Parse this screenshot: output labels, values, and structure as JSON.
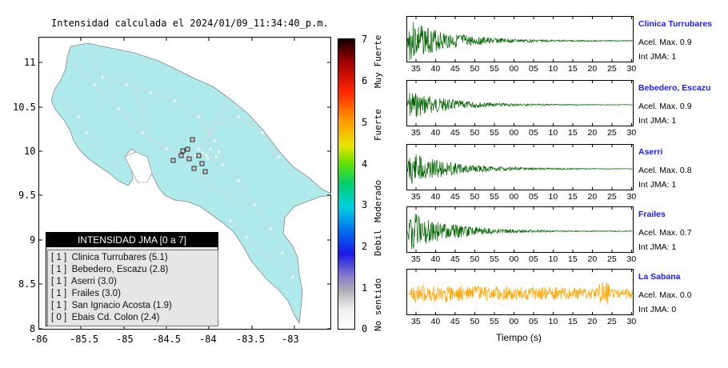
{
  "map": {
    "title": "Intensidad calculada el 2024/01/09_11:34:40_p.m.",
    "x_ticks": [
      "-86",
      "-85.5",
      "-85",
      "-84.5",
      "-84",
      "-83.5",
      "-83"
    ],
    "y_ticks": [
      "11",
      "10.5",
      "10",
      "9.5",
      "9",
      "8.5",
      "8"
    ],
    "land_color": "#aeeaec",
    "sea_color": "#ffffff"
  },
  "colorbar": {
    "ticks": [
      "7",
      "6",
      "5",
      "4",
      "3",
      "2",
      "1",
      "0"
    ],
    "categories": [
      "Muy Fuerte",
      "Fuerte",
      "Moderado",
      "Debil",
      "No sentido"
    ]
  },
  "legend": {
    "title": "INTENSIDAD JMA [0 a 7]",
    "rows": [
      "[ 1 ]  Clinica Turrubares (5.1)",
      "[ 1 ]  Bebedero, Escazu (2.8)",
      "[ 1 ]  Aserri (3.0)",
      "[ 1 ]  Frailes (3.0)",
      "[ 1 ]  San Ignacio Acosta (1.9)",
      "[ 0 ]  Ebais Cd. Colon (2.4)"
    ]
  },
  "waveforms": {
    "x_ticks": [
      "35",
      "40",
      "45",
      "50",
      "55",
      "00",
      "05",
      "10",
      "15",
      "20",
      "25",
      "30"
    ],
    "xlabel": "Tiempo (s)",
    "stations": [
      {
        "name": "Clinica Turrubares",
        "acel": "Acel. Max. 0.9",
        "int": "Int JMA: 1",
        "color": "#006400",
        "seed": 3,
        "amp": 1.0
      },
      {
        "name": "Bebedero, Escazu",
        "acel": "Acel. Max. 0.9",
        "int": "Int JMA: 1",
        "color": "#006400",
        "seed": 7,
        "amp": 0.7
      },
      {
        "name": "Aserri",
        "acel": "Acel. Max. 0.8",
        "int": "Int JMA: 1",
        "color": "#006400",
        "seed": 11,
        "amp": 0.85
      },
      {
        "name": "Frailes",
        "acel": "Acel. Max. 0.7",
        "int": "Int JMA: 1",
        "color": "#006400",
        "seed": 19,
        "amp": 0.95
      },
      {
        "name": "La Sabana",
        "acel": "Acel. Max. 0.0",
        "int": "Int JMA: 0",
        "color": "#ffa500",
        "seed": 23,
        "amp": 0.8
      }
    ]
  }
}
